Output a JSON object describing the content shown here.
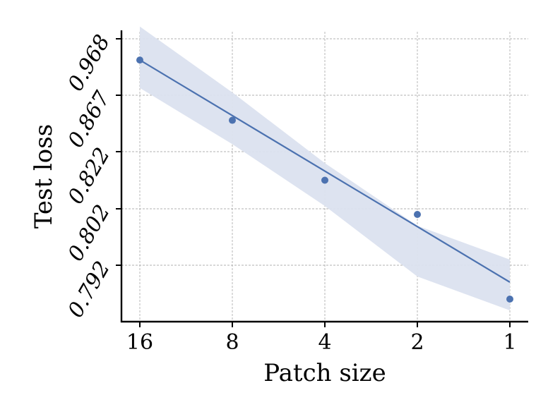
{
  "chart_data": {
    "type": "scatter",
    "title": "",
    "xlabel": "Patch size",
    "ylabel": "Test loss",
    "x_scale": "log2",
    "x_reversed": true,
    "x_ticks": [
      16,
      8,
      4,
      2,
      1
    ],
    "x_tick_labels": [
      "16",
      "8",
      "4",
      "2",
      "1"
    ],
    "y_scale": "log",
    "y_ticks": [
      0.792,
      0.802,
      0.822,
      0.867,
      0.968
    ],
    "y_tick_labels": [
      "0.792",
      "0.802",
      "0.822",
      "0.867",
      "0.968"
    ],
    "grid": true,
    "points": [
      {
        "x": 16,
        "y": 0.93
      },
      {
        "x": 8,
        "y": 0.847
      },
      {
        "x": 4,
        "y": 0.812
      },
      {
        "x": 2,
        "y": 0.801
      },
      {
        "x": 1,
        "y": 0.786
      }
    ],
    "fit_line": [
      {
        "x": 16,
        "y": 0.93
      },
      {
        "x": 1,
        "y": 0.789
      }
    ],
    "confidence_band": {
      "x": [
        16,
        8,
        4,
        2,
        1
      ],
      "upper": [
        0.99,
        0.872,
        0.818,
        0.799,
        0.793
      ],
      "lower": [
        0.88,
        0.828,
        0.803,
        0.79,
        0.784
      ]
    },
    "colors": {
      "series": "#4c72b0",
      "band": "#dbe2ef",
      "grid": "#b0b0b0",
      "axis": "#000000"
    }
  }
}
